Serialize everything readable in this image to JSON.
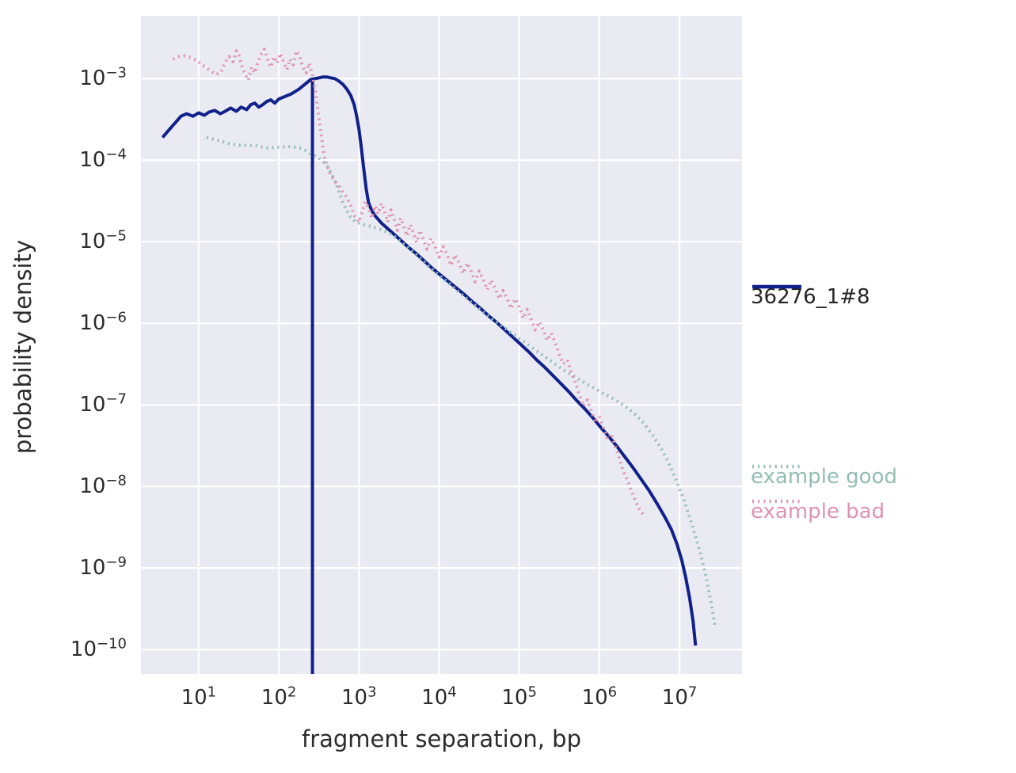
{
  "figure": {
    "background": "#ffffff",
    "axes_background": "#eaeaf2",
    "grid_color": "#ffffff",
    "text_color": "#262626"
  },
  "chart_data": {
    "type": "line",
    "title": "",
    "xlabel": "fragment separation, bp",
    "ylabel": "probability density",
    "x_scale": "log",
    "y_scale": "log",
    "grid": true,
    "legend_position": "right",
    "x_tick_exponents": [
      1,
      2,
      3,
      4,
      5,
      6,
      7
    ],
    "y_tick_exponents": [
      -3,
      -4,
      -5,
      -6,
      -7,
      -8,
      -9,
      -10
    ],
    "x_range_log10": [
      0.28,
      7.78
    ],
    "y_range_log10": [
      -10.3,
      -2.23
    ],
    "series": [
      {
        "name": "36276_1#8",
        "color": "#10218b",
        "style": "solid",
        "label_color": "#262626",
        "spike": {
          "x_log10": 2.42,
          "y_top_log10": -3.0,
          "y_bottom_log10": -10.3
        },
        "points_log10": [
          [
            0.55,
            -3.72
          ],
          [
            0.62,
            -3.64
          ],
          [
            0.7,
            -3.55
          ],
          [
            0.78,
            -3.46
          ],
          [
            0.85,
            -3.43
          ],
          [
            0.93,
            -3.46
          ],
          [
            1.0,
            -3.42
          ],
          [
            1.07,
            -3.45
          ],
          [
            1.13,
            -3.41
          ],
          [
            1.2,
            -3.39
          ],
          [
            1.27,
            -3.43
          ],
          [
            1.33,
            -3.4
          ],
          [
            1.4,
            -3.36
          ],
          [
            1.47,
            -3.4
          ],
          [
            1.53,
            -3.35
          ],
          [
            1.6,
            -3.38
          ],
          [
            1.65,
            -3.32
          ],
          [
            1.7,
            -3.3
          ],
          [
            1.75,
            -3.35
          ],
          [
            1.8,
            -3.32
          ],
          [
            1.85,
            -3.28
          ],
          [
            1.9,
            -3.26
          ],
          [
            1.95,
            -3.3
          ],
          [
            2.0,
            -3.25
          ],
          [
            2.05,
            -3.23
          ],
          [
            2.1,
            -3.21
          ],
          [
            2.15,
            -3.19
          ],
          [
            2.2,
            -3.16
          ],
          [
            2.25,
            -3.13
          ],
          [
            2.3,
            -3.09
          ],
          [
            2.35,
            -3.05
          ],
          [
            2.4,
            -3.01
          ],
          [
            2.45,
            -3.0
          ],
          [
            2.5,
            -2.99
          ],
          [
            2.55,
            -2.98
          ],
          [
            2.6,
            -2.98
          ],
          [
            2.65,
            -2.99
          ],
          [
            2.7,
            -3.0
          ],
          [
            2.75,
            -3.03
          ],
          [
            2.8,
            -3.07
          ],
          [
            2.85,
            -3.13
          ],
          [
            2.9,
            -3.21
          ],
          [
            2.94,
            -3.32
          ],
          [
            2.97,
            -3.45
          ],
          [
            3.0,
            -3.62
          ],
          [
            3.03,
            -3.85
          ],
          [
            3.06,
            -4.1
          ],
          [
            3.09,
            -4.35
          ],
          [
            3.12,
            -4.52
          ],
          [
            3.16,
            -4.62
          ],
          [
            3.2,
            -4.68
          ],
          [
            3.28,
            -4.77
          ],
          [
            3.36,
            -4.84
          ],
          [
            3.44,
            -4.91
          ],
          [
            3.52,
            -4.98
          ],
          [
            3.62,
            -5.07
          ],
          [
            3.72,
            -5.15
          ],
          [
            3.82,
            -5.24
          ],
          [
            3.92,
            -5.33
          ],
          [
            4.02,
            -5.41
          ],
          [
            4.12,
            -5.49
          ],
          [
            4.22,
            -5.57
          ],
          [
            4.32,
            -5.65
          ],
          [
            4.42,
            -5.74
          ],
          [
            4.52,
            -5.82
          ],
          [
            4.62,
            -5.91
          ],
          [
            4.72,
            -5.99
          ],
          [
            4.82,
            -6.08
          ],
          [
            4.92,
            -6.17
          ],
          [
            5.02,
            -6.26
          ],
          [
            5.12,
            -6.35
          ],
          [
            5.22,
            -6.45
          ],
          [
            5.32,
            -6.54
          ],
          [
            5.42,
            -6.64
          ],
          [
            5.52,
            -6.74
          ],
          [
            5.62,
            -6.84
          ],
          [
            5.72,
            -6.95
          ],
          [
            5.82,
            -7.05
          ],
          [
            5.92,
            -7.16
          ],
          [
            6.02,
            -7.28
          ],
          [
            6.12,
            -7.39
          ],
          [
            6.22,
            -7.51
          ],
          [
            6.32,
            -7.64
          ],
          [
            6.42,
            -7.77
          ],
          [
            6.52,
            -7.91
          ],
          [
            6.62,
            -8.05
          ],
          [
            6.72,
            -8.21
          ],
          [
            6.82,
            -8.38
          ],
          [
            6.9,
            -8.53
          ],
          [
            6.97,
            -8.71
          ],
          [
            7.03,
            -8.91
          ],
          [
            7.08,
            -9.13
          ],
          [
            7.13,
            -9.39
          ],
          [
            7.17,
            -9.66
          ],
          [
            7.2,
            -9.95
          ]
        ]
      },
      {
        "name": "example good",
        "color": "#93bdb3",
        "style": "dotted",
        "label_color": "#93bdb3",
        "points_log10": [
          [
            1.1,
            -3.72
          ],
          [
            1.25,
            -3.76
          ],
          [
            1.4,
            -3.8
          ],
          [
            1.55,
            -3.82
          ],
          [
            1.7,
            -3.82
          ],
          [
            1.85,
            -3.85
          ],
          [
            2.0,
            -3.84
          ],
          [
            2.1,
            -3.83
          ],
          [
            2.2,
            -3.84
          ],
          [
            2.3,
            -3.86
          ],
          [
            2.4,
            -3.92
          ],
          [
            2.5,
            -3.97
          ],
          [
            2.6,
            -4.06
          ],
          [
            2.7,
            -4.25
          ],
          [
            2.8,
            -4.52
          ],
          [
            2.88,
            -4.68
          ],
          [
            2.95,
            -4.75
          ],
          [
            3.05,
            -4.79
          ],
          [
            3.15,
            -4.81
          ],
          [
            3.25,
            -4.84
          ],
          [
            3.35,
            -4.88
          ],
          [
            3.45,
            -4.94
          ],
          [
            3.55,
            -5.02
          ],
          [
            3.65,
            -5.1
          ],
          [
            3.75,
            -5.19
          ],
          [
            3.85,
            -5.28
          ],
          [
            3.95,
            -5.37
          ],
          [
            4.05,
            -5.45
          ],
          [
            4.15,
            -5.53
          ],
          [
            4.25,
            -5.62
          ],
          [
            4.35,
            -5.7
          ],
          [
            4.45,
            -5.78
          ],
          [
            4.55,
            -5.86
          ],
          [
            4.65,
            -5.94
          ],
          [
            4.75,
            -6.01
          ],
          [
            4.85,
            -6.08
          ],
          [
            4.95,
            -6.15
          ],
          [
            5.05,
            -6.22
          ],
          [
            5.15,
            -6.29
          ],
          [
            5.25,
            -6.36
          ],
          [
            5.35,
            -6.43
          ],
          [
            5.45,
            -6.5
          ],
          [
            5.55,
            -6.57
          ],
          [
            5.65,
            -6.63
          ],
          [
            5.75,
            -6.69
          ],
          [
            5.85,
            -6.75
          ],
          [
            5.95,
            -6.8
          ],
          [
            6.05,
            -6.86
          ],
          [
            6.15,
            -6.91
          ],
          [
            6.25,
            -6.97
          ],
          [
            6.35,
            -7.04
          ],
          [
            6.45,
            -7.12
          ],
          [
            6.55,
            -7.22
          ],
          [
            6.65,
            -7.35
          ],
          [
            6.75,
            -7.5
          ],
          [
            6.85,
            -7.68
          ],
          [
            6.95,
            -7.9
          ],
          [
            7.05,
            -8.15
          ],
          [
            7.15,
            -8.45
          ],
          [
            7.25,
            -8.78
          ],
          [
            7.33,
            -9.1
          ],
          [
            7.4,
            -9.45
          ],
          [
            7.44,
            -9.7
          ]
        ]
      },
      {
        "name": "example bad",
        "color": "#df93ad",
        "style": "dotted",
        "label_color": "#df93ad",
        "points_log10": [
          [
            0.68,
            -2.76
          ],
          [
            0.75,
            -2.73
          ],
          [
            0.82,
            -2.72
          ],
          [
            0.9,
            -2.74
          ],
          [
            0.98,
            -2.78
          ],
          [
            1.06,
            -2.84
          ],
          [
            1.14,
            -2.9
          ],
          [
            1.22,
            -2.95
          ],
          [
            1.28,
            -2.92
          ],
          [
            1.33,
            -2.8
          ],
          [
            1.38,
            -2.73
          ],
          [
            1.43,
            -2.79
          ],
          [
            1.47,
            -2.66
          ],
          [
            1.5,
            -2.71
          ],
          [
            1.54,
            -2.85
          ],
          [
            1.58,
            -2.95
          ],
          [
            1.62,
            -3.02
          ],
          [
            1.66,
            -2.86
          ],
          [
            1.7,
            -2.93
          ],
          [
            1.74,
            -2.79
          ],
          [
            1.78,
            -2.7
          ],
          [
            1.82,
            -2.64
          ],
          [
            1.86,
            -2.76
          ],
          [
            1.9,
            -2.86
          ],
          [
            1.94,
            -2.73
          ],
          [
            1.98,
            -2.81
          ],
          [
            2.02,
            -2.69
          ],
          [
            2.06,
            -2.79
          ],
          [
            2.1,
            -2.89
          ],
          [
            2.14,
            -2.76
          ],
          [
            2.18,
            -2.83
          ],
          [
            2.22,
            -2.66
          ],
          [
            2.26,
            -2.73
          ],
          [
            2.3,
            -2.86
          ],
          [
            2.34,
            -2.93
          ],
          [
            2.38,
            -2.81
          ],
          [
            2.42,
            -2.96
          ],
          [
            2.45,
            -3.12
          ],
          [
            2.48,
            -3.32
          ],
          [
            2.51,
            -3.56
          ],
          [
            2.54,
            -3.76
          ],
          [
            2.57,
            -3.96
          ],
          [
            2.6,
            -4.06
          ],
          [
            2.64,
            -4.16
          ],
          [
            2.68,
            -4.23
          ],
          [
            2.72,
            -4.29
          ],
          [
            2.76,
            -4.33
          ],
          [
            2.8,
            -4.39
          ],
          [
            2.85,
            -4.46
          ],
          [
            2.9,
            -4.56
          ],
          [
            2.95,
            -4.69
          ],
          [
            3.0,
            -4.76
          ],
          [
            3.04,
            -4.63
          ],
          [
            3.08,
            -4.51
          ],
          [
            3.12,
            -4.59
          ],
          [
            3.16,
            -4.71
          ],
          [
            3.2,
            -4.56
          ],
          [
            3.24,
            -4.66
          ],
          [
            3.28,
            -4.53
          ],
          [
            3.32,
            -4.63
          ],
          [
            3.36,
            -4.76
          ],
          [
            3.4,
            -4.61
          ],
          [
            3.44,
            -4.73
          ],
          [
            3.48,
            -4.86
          ],
          [
            3.52,
            -4.71
          ],
          [
            3.56,
            -4.81
          ],
          [
            3.6,
            -4.93
          ],
          [
            3.64,
            -4.79
          ],
          [
            3.68,
            -4.89
          ],
          [
            3.72,
            -5.01
          ],
          [
            3.76,
            -4.86
          ],
          [
            3.8,
            -4.96
          ],
          [
            3.85,
            -5.09
          ],
          [
            3.9,
            -4.96
          ],
          [
            3.95,
            -5.06
          ],
          [
            4.0,
            -5.19
          ],
          [
            4.05,
            -5.06
          ],
          [
            4.1,
            -5.16
          ],
          [
            4.15,
            -5.29
          ],
          [
            4.2,
            -5.16
          ],
          [
            4.25,
            -5.26
          ],
          [
            4.3,
            -5.39
          ],
          [
            4.35,
            -5.26
          ],
          [
            4.4,
            -5.36
          ],
          [
            4.45,
            -5.49
          ],
          [
            4.5,
            -5.36
          ],
          [
            4.55,
            -5.46
          ],
          [
            4.6,
            -5.59
          ],
          [
            4.65,
            -5.47
          ],
          [
            4.7,
            -5.57
          ],
          [
            4.75,
            -5.7
          ],
          [
            4.8,
            -5.6
          ],
          [
            4.85,
            -5.7
          ],
          [
            4.9,
            -5.82
          ],
          [
            4.95,
            -5.7
          ],
          [
            5.0,
            -5.8
          ],
          [
            5.05,
            -5.94
          ],
          [
            5.1,
            -5.83
          ],
          [
            5.15,
            -5.95
          ],
          [
            5.2,
            -6.08
          ],
          [
            5.25,
            -5.98
          ],
          [
            5.3,
            -6.08
          ],
          [
            5.35,
            -6.21
          ],
          [
            5.4,
            -6.12
          ],
          [
            5.45,
            -6.24
          ],
          [
            5.5,
            -6.38
          ],
          [
            5.55,
            -6.5
          ],
          [
            5.6,
            -6.45
          ],
          [
            5.65,
            -6.6
          ],
          [
            5.7,
            -6.72
          ],
          [
            5.75,
            -6.88
          ],
          [
            5.8,
            -7.02
          ],
          [
            5.85,
            -6.94
          ],
          [
            5.9,
            -7.08
          ],
          [
            5.95,
            -7.22
          ],
          [
            6.0,
            -7.14
          ],
          [
            6.05,
            -7.28
          ],
          [
            6.1,
            -7.42
          ],
          [
            6.15,
            -7.35
          ],
          [
            6.2,
            -7.52
          ],
          [
            6.25,
            -7.66
          ],
          [
            6.3,
            -7.82
          ],
          [
            6.35,
            -7.92
          ],
          [
            6.4,
            -8.06
          ],
          [
            6.45,
            -8.18
          ],
          [
            6.5,
            -8.28
          ],
          [
            6.55,
            -8.35
          ]
        ]
      }
    ]
  },
  "legend": {
    "main_label": "36276_1#8",
    "example_good_label": "example good",
    "example_bad_label": "example bad"
  }
}
